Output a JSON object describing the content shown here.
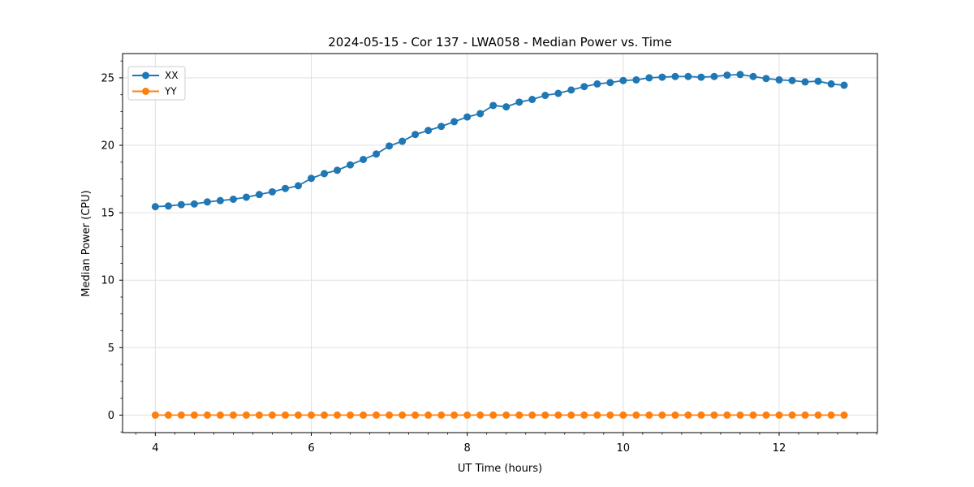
{
  "chart_data": {
    "type": "line",
    "title": "2024-05-15 - Cor 137 - LWA058 - Median Power vs. Time",
    "xlabel": "UT Time (hours)",
    "ylabel": "Median Power (CPU)",
    "xlim": [
      3.58,
      13.26
    ],
    "ylim": [
      -1.3,
      26.8
    ],
    "x_major_ticks": [
      4,
      6,
      8,
      10,
      12
    ],
    "y_major_ticks": [
      0,
      5,
      10,
      15,
      20,
      25
    ],
    "x_minor_step": 0.25,
    "y_minor_step": 1.25,
    "grid": true,
    "legend_position": "upper left",
    "x": [
      4.0,
      4.167,
      4.333,
      4.5,
      4.667,
      4.833,
      5.0,
      5.167,
      5.333,
      5.5,
      5.667,
      5.833,
      6.0,
      6.167,
      6.333,
      6.5,
      6.667,
      6.833,
      7.0,
      7.167,
      7.333,
      7.5,
      7.667,
      7.833,
      8.0,
      8.167,
      8.333,
      8.5,
      8.667,
      8.833,
      9.0,
      9.167,
      9.333,
      9.5,
      9.667,
      9.833,
      10.0,
      10.167,
      10.333,
      10.5,
      10.667,
      10.833,
      11.0,
      11.167,
      11.333,
      11.5,
      11.667,
      11.833,
      12.0,
      12.167,
      12.333,
      12.5,
      12.667,
      12.833
    ],
    "series": [
      {
        "name": "XX",
        "color": "#1f77b4",
        "values": [
          15.45,
          15.5,
          15.6,
          15.65,
          15.8,
          15.9,
          16.0,
          16.15,
          16.35,
          16.55,
          16.8,
          17.0,
          17.55,
          17.9,
          18.15,
          18.55,
          18.95,
          19.35,
          19.95,
          20.3,
          20.8,
          21.1,
          21.4,
          21.75,
          22.1,
          22.35,
          22.95,
          22.85,
          23.2,
          23.4,
          23.7,
          23.85,
          24.1,
          24.35,
          24.55,
          24.65,
          24.8,
          24.85,
          25.0,
          25.05,
          25.1,
          25.1,
          25.05,
          25.1,
          25.2,
          25.25,
          25.1,
          24.95,
          24.85,
          24.8,
          24.7,
          24.75,
          24.55,
          24.45
        ]
      },
      {
        "name": "YY",
        "color": "#ff7f0e",
        "values": [
          0,
          0,
          0,
          0,
          0,
          0,
          0,
          0,
          0,
          0,
          0,
          0,
          0,
          0,
          0,
          0,
          0,
          0,
          0,
          0,
          0,
          0,
          0,
          0,
          0,
          0,
          0,
          0,
          0,
          0,
          0,
          0,
          0,
          0,
          0,
          0,
          0,
          0,
          0,
          0,
          0,
          0,
          0,
          0,
          0,
          0,
          0,
          0,
          0,
          0,
          0,
          0,
          0,
          0
        ]
      }
    ]
  },
  "style_colors": {
    "grid": "#e0e0e0",
    "spine": "#000000",
    "legend_border": "#cccccc",
    "legend_bg": "#ffffff"
  }
}
